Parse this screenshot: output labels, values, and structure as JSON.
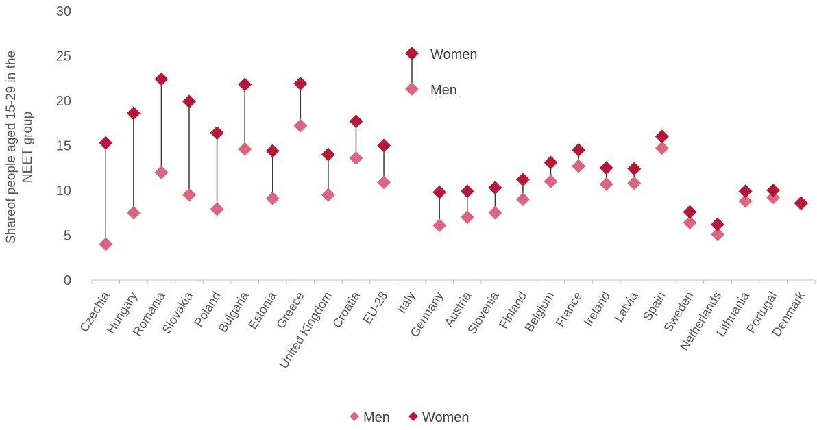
{
  "chart_data": {
    "type": "scatter",
    "ylabel": "Shareof people aged 15-29 in the NEET group",
    "ylim": [
      0,
      30
    ],
    "yticks": [
      0,
      5,
      10,
      15,
      20,
      25,
      30
    ],
    "ytick_labels": [
      "0",
      "5",
      "10",
      "15",
      "20",
      "25",
      "30"
    ],
    "grid": false,
    "categories": [
      "Czechia",
      "Hungary",
      "Romania",
      "Slovakia",
      "Poland",
      "Bulgaria",
      "Estonia",
      "Greece",
      "United Kingdom",
      "Croatia",
      "EU-28",
      "Italy",
      "Germany",
      "Austria",
      "Slovenia",
      "Finland",
      "Belgium",
      "France",
      "Ireland",
      "Latvia",
      "Spain",
      "Sweden",
      "Netherlands",
      "Lithuania",
      "Portugal",
      "Denmark"
    ],
    "series": [
      {
        "name": "Men",
        "values": [
          4.0,
          7.5,
          12.0,
          9.5,
          7.9,
          14.6,
          9.1,
          17.2,
          9.5,
          13.6,
          10.9,
          null,
          6.1,
          7.0,
          7.5,
          9.0,
          11.0,
          12.7,
          10.7,
          10.8,
          14.7,
          6.4,
          5.1,
          8.8,
          9.2,
          8.5
        ],
        "color": "#d9677f",
        "marker": "diamond"
      },
      {
        "name": "Women",
        "values": [
          15.3,
          18.6,
          22.4,
          19.9,
          16.4,
          21.8,
          14.4,
          21.9,
          14.0,
          17.7,
          15.0,
          null,
          9.8,
          9.9,
          10.3,
          11.2,
          13.1,
          14.5,
          12.5,
          12.4,
          16.0,
          7.6,
          6.2,
          9.9,
          10.0,
          8.6
        ],
        "color": "#b5193a",
        "marker": "diamond"
      }
    ],
    "inset_legend": {
      "women_label": "Women",
      "men_label": "Men",
      "placement": "upper-center"
    },
    "legend": {
      "placement": "bottom-center",
      "entries": [
        "Men",
        "Women"
      ]
    },
    "connector_color": "#3a3a3a",
    "axis_color": "#bfbfbf",
    "text_color": "#595959"
  }
}
